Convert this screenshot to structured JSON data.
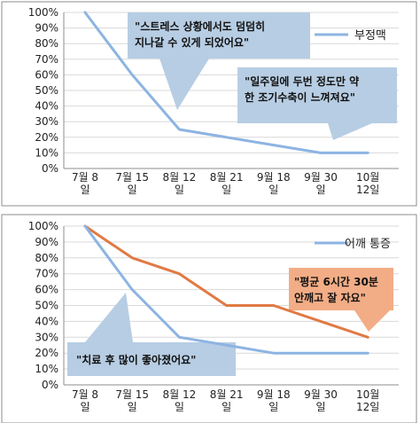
{
  "colors": {
    "blue_series": "#8db4e2",
    "orange_series": "#e07a45",
    "blue_callout": "#b7cde3",
    "orange_callout": "#f2ad86"
  },
  "chart_data": [
    {
      "type": "line",
      "categories": [
        "7월 8\n일",
        "7월 15\n일",
        "8월 12\n일",
        "8월 21\n일",
        "9월 18\n일",
        "9월 30\n일",
        "10월\n12일"
      ],
      "ylim": [
        0,
        100
      ],
      "yticks": [
        "0%",
        "10%",
        "20%",
        "30%",
        "40%",
        "50%",
        "60%",
        "70%",
        "80%",
        "90%",
        "100%"
      ],
      "grid": true,
      "legend_position": "top-right",
      "series": [
        {
          "name": "부정맥",
          "color": "#8db4e2",
          "values": [
            100,
            60,
            25,
            20,
            15,
            10,
            10
          ]
        }
      ],
      "callouts": [
        {
          "text": "\"스트레스 상황에서도 덤덤히\n지나갈 수 있게 되었어요\"",
          "color": "blue"
        },
        {
          "text": "\"일주일에 두번 정도만 약\n한 조기수축이 느껴져요\"",
          "color": "blue"
        }
      ]
    },
    {
      "type": "line",
      "categories": [
        "7월 8\n일",
        "7월 15\n일",
        "8월 12\n일",
        "8월 21\n일",
        "9월 18\n일",
        "9월 30\n일",
        "10월\n12일"
      ],
      "ylim": [
        0,
        100
      ],
      "yticks": [
        "0%",
        "10%",
        "20%",
        "30%",
        "40%",
        "50%",
        "60%",
        "70%",
        "80%",
        "90%",
        "100%"
      ],
      "grid": true,
      "legend_position": "top-right",
      "series": [
        {
          "name": "어깨 통증",
          "color": "#8db4e2",
          "values": [
            100,
            60,
            30,
            25,
            20,
            20,
            20
          ]
        },
        {
          "name": "",
          "color": "#e07a45",
          "values": [
            100,
            80,
            70,
            50,
            50,
            40,
            30
          ]
        }
      ],
      "callouts": [
        {
          "text": "\"평균 6시간 30분\n안깨고 잘 자요\"",
          "color": "orange"
        },
        {
          "text": "\"치료 후 많이 좋아졌어요\"",
          "color": "blue"
        }
      ]
    }
  ]
}
